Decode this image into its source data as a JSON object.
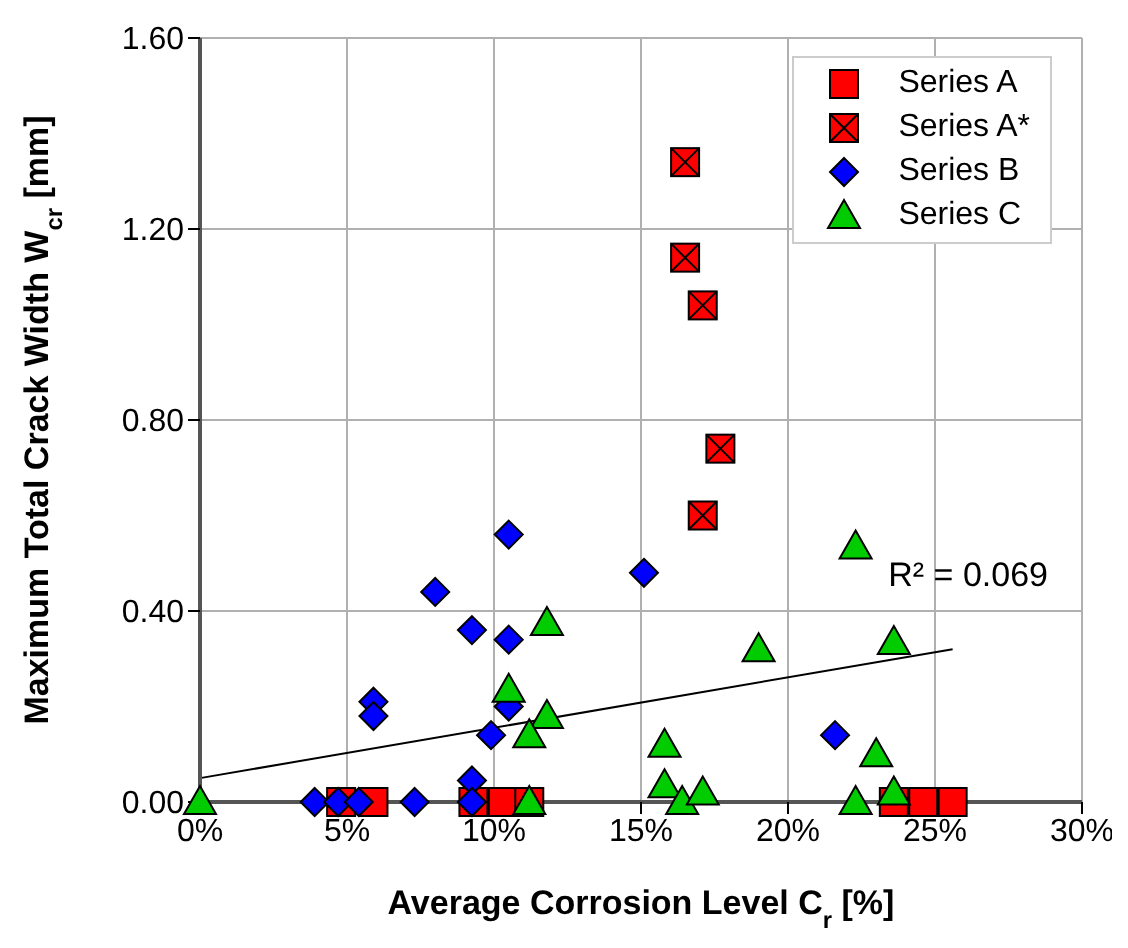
{
  "chart_data": {
    "type": "scatter",
    "xlabel": "Average Corrosion Level C$_{r}$ [%]",
    "ylabel": "Maximum Total Crack Width W$_{cr}$ [mm]",
    "xlim": [
      0,
      30
    ],
    "xticks": [
      {
        "value": 0,
        "label": "0%"
      },
      {
        "value": 5,
        "label": "5%"
      },
      {
        "value": 10,
        "label": "10%"
      },
      {
        "value": 15,
        "label": "15%"
      },
      {
        "value": 20,
        "label": "20%"
      },
      {
        "value": 25,
        "label": "25%"
      },
      {
        "value": 30,
        "label": "30%"
      }
    ],
    "ylim": [
      0,
      1.6
    ],
    "yticks": [
      {
        "value": 0,
        "label": "0.00"
      },
      {
        "value": 0.4,
        "label": "0.40"
      },
      {
        "value": 0.8,
        "label": "0.80"
      },
      {
        "value": 1.2,
        "label": "1.20"
      },
      {
        "value": 1.6,
        "label": "1.60"
      }
    ],
    "grid": true,
    "legend": "top right",
    "annotations": [
      "R² = 0.069"
    ],
    "series": [
      {
        "name": "Series A",
        "color": "#ff0000",
        "marker": "square",
        "x": [
          4.8,
          5.9,
          9.3,
          10.3,
          11.2,
          23.6,
          24.6,
          25.6
        ],
        "values": [
          0,
          0,
          0,
          0,
          0,
          0,
          0,
          0
        ]
      },
      {
        "name": "Series A*",
        "color": "#ff0000",
        "x": [
          16.5,
          16.5,
          17.1,
          17.7,
          17.1
        ],
        "values": [
          1.34,
          1.14,
          1.04,
          0.74,
          0.6
        ]
      },
      {
        "name": "Series B",
        "color": "#0000ff",
        "marker": "diamond",
        "x": [
          10.5,
          15.1,
          8.0,
          9.25,
          10.5,
          5.9,
          5.9,
          10.5,
          9.9,
          9.25,
          9.25,
          3.9,
          4.7,
          5.4,
          7.3,
          21.6
        ],
        "values": [
          0.56,
          0.48,
          0.44,
          0.36,
          0.34,
          0.21,
          0.18,
          0.2,
          0.14,
          0.045,
          0,
          0,
          0,
          0,
          0,
          0.14
        ]
      },
      {
        "name": "Series C",
        "color": "#00cc00",
        "marker": "triangle",
        "x": [
          0,
          11.8,
          10.5,
          11.8,
          11.2,
          11.2,
          22.3,
          19.0,
          23.6,
          15.8,
          15.8,
          16.4,
          17.1,
          23.0,
          22.3,
          23.6
        ],
        "values": [
          0,
          0.375,
          0.235,
          0.18,
          0.14,
          0,
          0.535,
          0.32,
          0.335,
          0.12,
          0.035,
          0,
          0.02,
          0.1,
          0,
          0.02
        ]
      },
      {
        "type": "line",
        "color": "#000000",
        "marker": "none",
        "x": [
          0,
          25.6
        ],
        "values": [
          0.05,
          0.32
        ]
      }
    ]
  }
}
